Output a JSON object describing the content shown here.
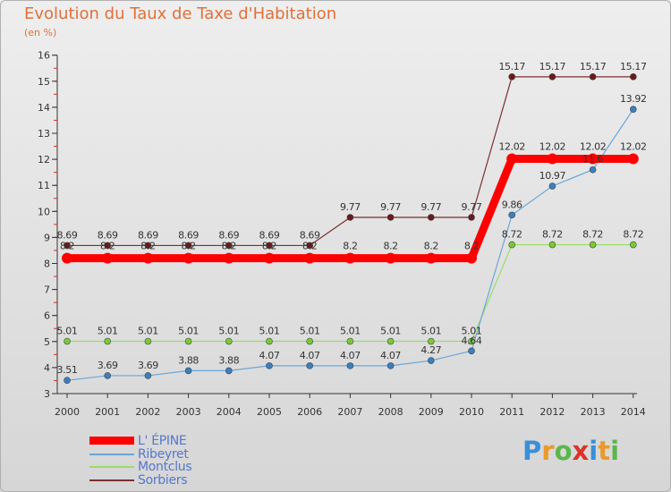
{
  "title": "Evolution du Taux de Taxe d'Habitation",
  "unit_label": "(en %)",
  "logo": {
    "text": "Proxiti",
    "letters": [
      "P",
      "r",
      "o",
      "x",
      "i",
      "t",
      "i"
    ],
    "colors": [
      "#3a8fd8",
      "#e89a2c",
      "#5ab74a",
      "#d9342b",
      "#3a8fd8",
      "#e89a2c",
      "#5ab74a"
    ]
  },
  "legend": [
    {
      "label": "L' ÉPINE",
      "color": "#ff0000"
    },
    {
      "label": "Ribeyret",
      "color": "#6aa6d8"
    },
    {
      "label": "Montclus",
      "color": "#99dd66"
    },
    {
      "label": "Sorbiers",
      "color": "#7a3030"
    }
  ],
  "chart_data": {
    "type": "line",
    "x": [
      2000,
      2001,
      2002,
      2003,
      2004,
      2005,
      2006,
      2007,
      2008,
      2009,
      2010,
      2011,
      2012,
      2013,
      2014
    ],
    "ylim": [
      3,
      16
    ],
    "yticks": [
      3,
      4,
      5,
      6,
      7,
      8,
      9,
      10,
      11,
      12,
      13,
      14,
      15,
      16
    ],
    "grid": false,
    "series": [
      {
        "name": "Sorbiers",
        "color": "#7a3030",
        "marker_color": "#6b1a1a",
        "values": [
          8.69,
          8.69,
          8.69,
          8.69,
          8.69,
          8.69,
          8.69,
          9.77,
          9.77,
          9.77,
          9.77,
          15.17,
          15.17,
          15.17,
          15.17
        ],
        "labels": [
          "8.69",
          "8.69",
          "8.69",
          "8.69",
          "8.69",
          "8.69",
          "8.69",
          "9.77",
          "9.77",
          "9.77",
          "9.77",
          "15.17",
          "15.17",
          "15.17",
          "15.17"
        ]
      },
      {
        "name": "Montclus",
        "color": "#99dd66",
        "marker_color": "#77cc33",
        "values": [
          5.01,
          5.01,
          5.01,
          5.01,
          5.01,
          5.01,
          5.01,
          5.01,
          5.01,
          5.01,
          5.01,
          8.72,
          8.72,
          8.72,
          8.72
        ],
        "labels": [
          "5.01",
          "5.01",
          "5.01",
          "5.01",
          "5.01",
          "5.01",
          "5.01",
          "5.01",
          "5.01",
          "5.01",
          "5.01",
          "8.72",
          "8.72",
          "8.72",
          "8.72"
        ]
      },
      {
        "name": "Ribeyret",
        "color": "#6aa6d8",
        "marker_color": "#3a7fc0",
        "values": [
          3.51,
          3.69,
          3.69,
          3.88,
          3.88,
          4.07,
          4.07,
          4.07,
          4.07,
          4.27,
          4.64,
          9.86,
          10.97,
          11.6,
          13.92
        ],
        "labels": [
          "3.51",
          "3.69",
          "3.69",
          "3.88",
          "3.88",
          "4.07",
          "4.07",
          "4.07",
          "4.07",
          "4.27",
          "4.64",
          "9.86",
          "10.97",
          "11.6",
          "13.92"
        ]
      },
      {
        "name": "L' ÉPINE",
        "color": "#ff0000",
        "marker_color": "#ff0000",
        "values": [
          8.2,
          8.2,
          8.2,
          8.2,
          8.2,
          8.2,
          8.2,
          8.2,
          8.2,
          8.2,
          8.2,
          12.02,
          12.02,
          12.02,
          12.02
        ],
        "labels": [
          "8.2",
          "8.2",
          "8.2",
          "8.2",
          "8.2",
          "8.2",
          "8.2",
          "8.2",
          "8.2",
          "8.2",
          "8.2",
          "12.02",
          "12.02",
          "12.02",
          "12.02"
        ]
      }
    ]
  }
}
